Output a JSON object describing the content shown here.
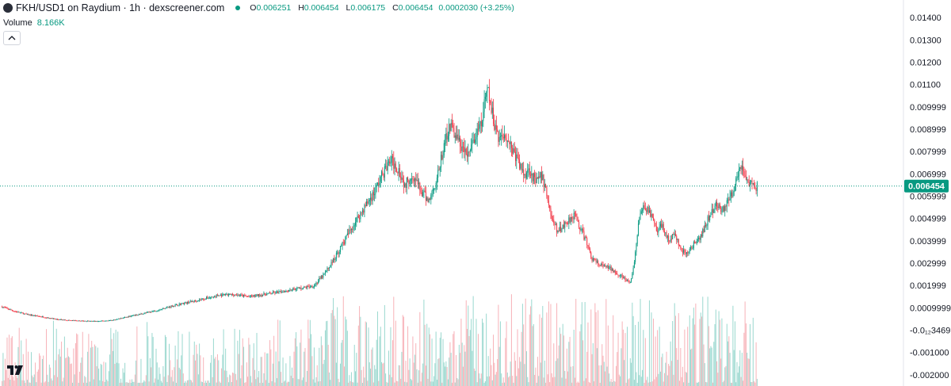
{
  "header": {
    "pair_title": "FKH/USD1 on Raydium · 1h · dexscreener.com",
    "open_label": "O",
    "open_value": "0.006251",
    "high_label": "H",
    "high_value": "0.006454",
    "low_label": "L",
    "low_value": "0.006175",
    "close_label": "C",
    "close_value": "0.006454",
    "change": "0.0002030 (+3.25%)"
  },
  "volume": {
    "label": "Volume",
    "value": "8.166K"
  },
  "colors": {
    "up": "#089981",
    "down": "#f23645",
    "up_volume": "#9ad8cf",
    "down_volume": "#f7b2b8",
    "last_price_bg": "#089981",
    "axis_text": "#131722"
  },
  "icons": {
    "coin": "coin-icon",
    "collapse": "chevron-up-icon",
    "logo": "tradingview-logo"
  },
  "chart_data": {
    "type": "candlestick",
    "interval": "1h",
    "y_axis": {
      "ticks": [
        "0.01400",
        "0.01300",
        "0.01200",
        "0.01100",
        "0.009999",
        "0.008999",
        "0.007999",
        "0.006999",
        "0.005999",
        "0.004999",
        "0.003999",
        "0.002999",
        "0.001999",
        "0.0009999",
        "-0.0₁₂3469",
        "-0.001000",
        "-0.002000"
      ],
      "range": [
        -0.0025,
        0.0145
      ]
    },
    "last_price": {
      "label": "0.006454",
      "value": 0.006454
    },
    "close_path_keypoints": [
      [
        0,
        0.00105
      ],
      [
        12,
        0.00085
      ],
      [
        25,
        0.0007
      ],
      [
        40,
        0.0006
      ],
      [
        55,
        0.00048
      ],
      [
        75,
        0.00042
      ],
      [
        95,
        0.0004
      ],
      [
        110,
        0.00045
      ],
      [
        125,
        0.0006
      ],
      [
        140,
        0.00075
      ],
      [
        155,
        0.0009
      ],
      [
        170,
        0.0011
      ],
      [
        185,
        0.00125
      ],
      [
        200,
        0.0014
      ],
      [
        215,
        0.00155
      ],
      [
        230,
        0.0016
      ],
      [
        245,
        0.0015
      ],
      [
        260,
        0.0016
      ],
      [
        275,
        0.0017
      ],
      [
        290,
        0.00185
      ],
      [
        300,
        0.0019
      ],
      [
        310,
        0.002
      ],
      [
        320,
        0.0025
      ],
      [
        330,
        0.0032
      ],
      [
        340,
        0.004
      ],
      [
        350,
        0.0048
      ],
      [
        360,
        0.0055
      ],
      [
        370,
        0.0062
      ],
      [
        378,
        0.007
      ],
      [
        386,
        0.0076
      ],
      [
        394,
        0.0072
      ],
      [
        400,
        0.0065
      ],
      [
        408,
        0.007
      ],
      [
        416,
        0.0062
      ],
      [
        424,
        0.0058
      ],
      [
        432,
        0.0068
      ],
      [
        438,
        0.008
      ],
      [
        444,
        0.0092
      ],
      [
        450,
        0.0088
      ],
      [
        456,
        0.0082
      ],
      [
        462,
        0.0078
      ],
      [
        470,
        0.0086
      ],
      [
        476,
        0.0092
      ],
      [
        482,
        0.0108
      ],
      [
        488,
        0.0094
      ],
      [
        494,
        0.0086
      ],
      [
        500,
        0.0088
      ],
      [
        506,
        0.0082
      ],
      [
        512,
        0.0076
      ],
      [
        518,
        0.007
      ],
      [
        524,
        0.0072
      ],
      [
        530,
        0.0066
      ],
      [
        536,
        0.0069
      ],
      [
        540,
        0.0063
      ],
      [
        546,
        0.005
      ],
      [
        552,
        0.0044
      ],
      [
        560,
        0.0048
      ],
      [
        568,
        0.0052
      ],
      [
        574,
        0.0046
      ],
      [
        580,
        0.004
      ],
      [
        586,
        0.0032
      ],
      [
        594,
        0.0029
      ],
      [
        602,
        0.0028
      ],
      [
        610,
        0.0026
      ],
      [
        618,
        0.0023
      ],
      [
        624,
        0.0021
      ],
      [
        628,
        0.003
      ],
      [
        632,
        0.0048
      ],
      [
        638,
        0.0056
      ],
      [
        644,
        0.0052
      ],
      [
        650,
        0.0044
      ],
      [
        656,
        0.0047
      ],
      [
        662,
        0.004
      ],
      [
        668,
        0.0043
      ],
      [
        674,
        0.0036
      ],
      [
        680,
        0.0034
      ],
      [
        686,
        0.0038
      ],
      [
        692,
        0.004
      ],
      [
        698,
        0.0046
      ],
      [
        704,
        0.0053
      ],
      [
        710,
        0.0056
      ],
      [
        716,
        0.0054
      ],
      [
        722,
        0.0058
      ],
      [
        726,
        0.0062
      ],
      [
        730,
        0.007
      ],
      [
        734,
        0.0074
      ],
      [
        738,
        0.0069
      ],
      [
        742,
        0.0066
      ],
      [
        746,
        0.0064
      ],
      [
        750,
        0.00645
      ]
    ]
  }
}
